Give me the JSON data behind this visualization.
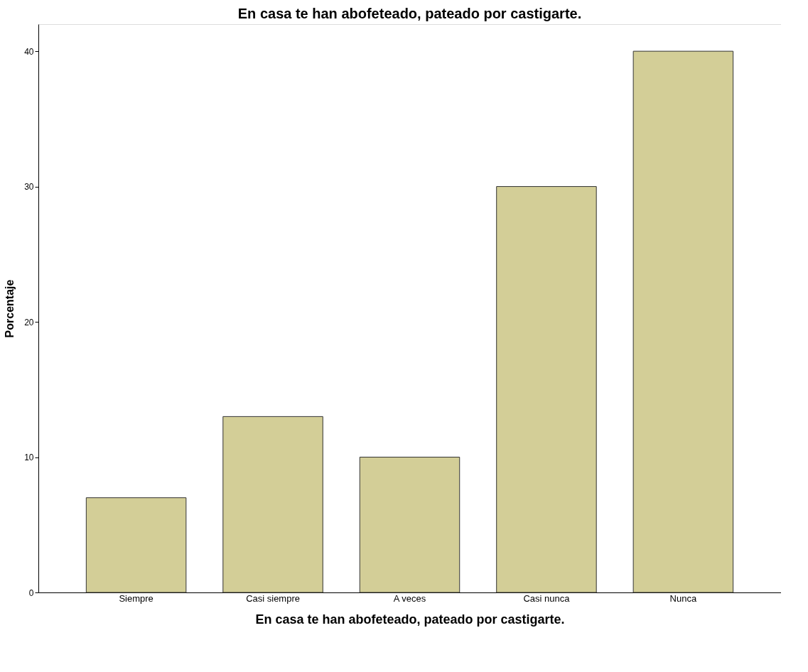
{
  "chart_data": {
    "type": "bar",
    "title": "En casa te han abofeteado, pateado por castigarte.",
    "xlabel": "En casa te han abofeteado, pateado por castigarte.",
    "ylabel": "Porcentaje",
    "categories": [
      "Siempre",
      "Casi siempre",
      "A veces",
      "Casi nunca",
      "Nunca"
    ],
    "values": [
      7,
      13,
      10,
      30,
      40
    ],
    "color": "#d3ce97",
    "ylim": [
      0,
      42
    ],
    "yticks": [
      0,
      10,
      20,
      30,
      40
    ],
    "grid": false
  }
}
